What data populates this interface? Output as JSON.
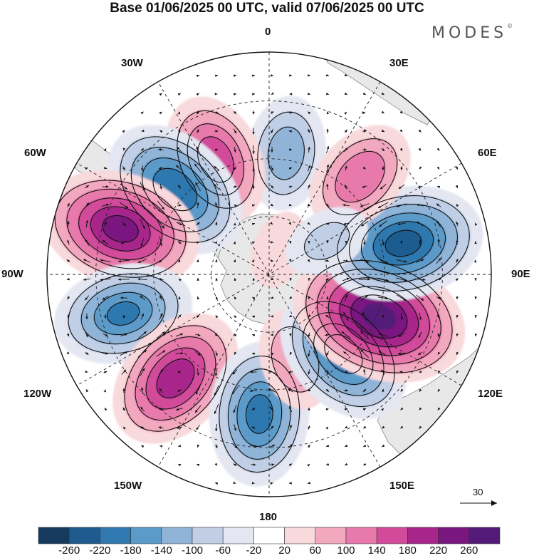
{
  "title": "Base 01/06/2025 00 UTC, valid 07/06/2025 00 UTC",
  "brand": {
    "text": "MODES",
    "mark": "©"
  },
  "longitude_labels": {
    "lon_0": "0",
    "lon_30e": "30E",
    "lon_60e": "60E",
    "lon_90e": "90E",
    "lon_120e": "120E",
    "lon_150e": "150E",
    "lon_180": "180",
    "lon_150w": "150W",
    "lon_120w": "120W",
    "lon_90w": "90W",
    "lon_60w": "60W",
    "lon_30w": "30W"
  },
  "reference_vector": {
    "value": "30",
    "icon": "arrow-right-icon"
  },
  "colorbar": {
    "ticks": [
      "-260",
      "-220",
      "-180",
      "-140",
      "-100",
      "-60",
      "-20",
      "20",
      "60",
      "100",
      "140",
      "180",
      "220",
      "260"
    ],
    "colors": [
      "#163a5e",
      "#1f5b8e",
      "#2f78b0",
      "#5b9bc9",
      "#8fb4d8",
      "#c1cfe6",
      "#e4e6f2",
      "#ffffff",
      "#f8d9dc",
      "#f2a8bf",
      "#e77aaa",
      "#d24b9a",
      "#a8268c",
      "#7a167f",
      "#531a78"
    ]
  },
  "anomaly_centers": [
    {
      "lon": 8,
      "lat_r": 0.55,
      "value": -120
    },
    {
      "lon": -25,
      "lat_r": 0.57,
      "value": 160
    },
    {
      "lon": -48,
      "lat_r": 0.57,
      "value": -210
    },
    {
      "lon": -73,
      "lat_r": 0.7,
      "value": 230
    },
    {
      "lon": -105,
      "lat_r": 0.68,
      "value": -180
    },
    {
      "lon": -138,
      "lat_r": 0.63,
      "value": 200
    },
    {
      "lon": -176,
      "lat_r": 0.63,
      "value": -190
    },
    {
      "lon": 163,
      "lat_r": 0.4,
      "value": 90
    },
    {
      "lon": 137,
      "lat_r": 0.49,
      "value": -200
    },
    {
      "lon": 111,
      "lat_r": 0.53,
      "value": 270
    },
    {
      "lon": 77,
      "lat_r": 0.62,
      "value": -230
    },
    {
      "lon": 43,
      "lat_r": 0.6,
      "value": 130
    },
    {
      "lon": 22,
      "lat_r": 0.12,
      "value": 40
    },
    {
      "lon": 60,
      "lat_r": 0.3,
      "value": -60
    }
  ]
}
